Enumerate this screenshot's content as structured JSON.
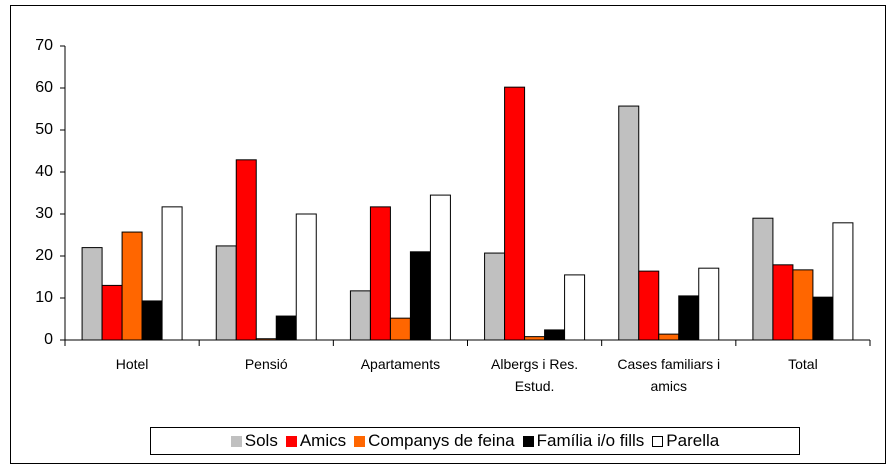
{
  "chart_data": {
    "type": "bar",
    "categories": [
      "Hotel",
      "Pensió",
      "Apartaments",
      "Albergs i Res. Estud.",
      "Cases familiars i amics",
      "Total"
    ],
    "series": [
      {
        "name": "Sols",
        "color": "#c0c0c0",
        "values": [
          22,
          22.4,
          11.7,
          20.7,
          55.7,
          29
        ]
      },
      {
        "name": "Amics",
        "color": "#ff0000",
        "values": [
          13,
          42.9,
          31.7,
          60.2,
          16.4,
          17.9
        ]
      },
      {
        "name": "Companys de feina",
        "color": "#ff6600",
        "values": [
          25.7,
          0.3,
          5.2,
          0.8,
          1.4,
          16.7
        ]
      },
      {
        "name": "Família i/o fills",
        "color": "#000000",
        "values": [
          9.3,
          5.7,
          21,
          2.4,
          10.5,
          10.2
        ]
      },
      {
        "name": "Parella",
        "color": "#ffffff",
        "values": [
          31.7,
          30,
          34.5,
          15.5,
          17.1,
          27.9
        ]
      }
    ],
    "ylim": [
      0,
      70
    ],
    "yticks": [
      0,
      10,
      20,
      30,
      40,
      50,
      60,
      70
    ],
    "grid": false,
    "legend": "bottom"
  }
}
